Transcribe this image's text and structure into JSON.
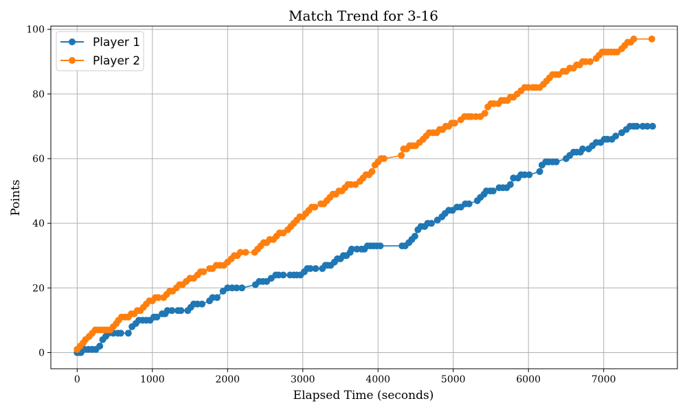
{
  "chart_data": {
    "type": "line",
    "title": "Match Trend for 3-16",
    "xlabel": "Elapsed Time (seconds)",
    "ylabel": "Points",
    "xlim": [
      -350,
      7980
    ],
    "ylim": [
      -5,
      101
    ],
    "x_ticks": [
      0,
      1000,
      2000,
      3000,
      4000,
      5000,
      6000,
      7000
    ],
    "y_ticks": [
      0,
      20,
      40,
      60,
      80,
      100
    ],
    "grid": true,
    "legend_position": "top-left",
    "series": [
      {
        "name": "Player 1",
        "color": "#1f77b4",
        "points": [
          [
            0,
            0
          ],
          [
            25,
            0
          ],
          [
            50,
            0
          ],
          [
            100,
            1
          ],
          [
            150,
            1
          ],
          [
            200,
            1
          ],
          [
            250,
            1
          ],
          [
            300,
            2
          ],
          [
            340,
            4
          ],
          [
            380,
            5
          ],
          [
            420,
            6
          ],
          [
            480,
            6
          ],
          [
            540,
            6
          ],
          [
            580,
            6
          ],
          [
            680,
            6
          ],
          [
            730,
            8
          ],
          [
            780,
            9
          ],
          [
            820,
            10
          ],
          [
            870,
            10
          ],
          [
            920,
            10
          ],
          [
            970,
            10
          ],
          [
            1020,
            11
          ],
          [
            1060,
            11
          ],
          [
            1130,
            12
          ],
          [
            1170,
            12
          ],
          [
            1200,
            13
          ],
          [
            1260,
            13
          ],
          [
            1340,
            13
          ],
          [
            1380,
            13
          ],
          [
            1470,
            13
          ],
          [
            1510,
            14
          ],
          [
            1550,
            15
          ],
          [
            1600,
            15
          ],
          [
            1660,
            15
          ],
          [
            1760,
            16
          ],
          [
            1800,
            17
          ],
          [
            1860,
            17
          ],
          [
            1940,
            19
          ],
          [
            2000,
            20
          ],
          [
            2060,
            20
          ],
          [
            2120,
            20
          ],
          [
            2190,
            20
          ],
          [
            2370,
            21
          ],
          [
            2420,
            22
          ],
          [
            2470,
            22
          ],
          [
            2520,
            22
          ],
          [
            2580,
            23
          ],
          [
            2640,
            24
          ],
          [
            2680,
            24
          ],
          [
            2740,
            24
          ],
          [
            2830,
            24
          ],
          [
            2880,
            24
          ],
          [
            2920,
            24
          ],
          [
            2970,
            24
          ],
          [
            3020,
            25
          ],
          [
            3060,
            26
          ],
          [
            3100,
            26
          ],
          [
            3170,
            26
          ],
          [
            3260,
            26
          ],
          [
            3300,
            27
          ],
          [
            3330,
            27
          ],
          [
            3370,
            27
          ],
          [
            3420,
            28
          ],
          [
            3460,
            29
          ],
          [
            3500,
            29
          ],
          [
            3540,
            30
          ],
          [
            3580,
            30
          ],
          [
            3630,
            31
          ],
          [
            3650,
            32
          ],
          [
            3720,
            32
          ],
          [
            3780,
            32
          ],
          [
            3820,
            32
          ],
          [
            3860,
            33
          ],
          [
            3900,
            33
          ],
          [
            3940,
            33
          ],
          [
            3980,
            33
          ],
          [
            4030,
            33
          ],
          [
            4320,
            33
          ],
          [
            4360,
            33
          ],
          [
            4410,
            34
          ],
          [
            4450,
            35
          ],
          [
            4490,
            36
          ],
          [
            4530,
            38
          ],
          [
            4570,
            39
          ],
          [
            4620,
            39
          ],
          [
            4660,
            40
          ],
          [
            4710,
            40
          ],
          [
            4790,
            41
          ],
          [
            4850,
            42
          ],
          [
            4890,
            43
          ],
          [
            4940,
            44
          ],
          [
            4990,
            44
          ],
          [
            5050,
            45
          ],
          [
            5100,
            45
          ],
          [
            5160,
            46
          ],
          [
            5210,
            46
          ],
          [
            5320,
            47
          ],
          [
            5360,
            48
          ],
          [
            5410,
            49
          ],
          [
            5440,
            50
          ],
          [
            5490,
            50
          ],
          [
            5530,
            50
          ],
          [
            5610,
            51
          ],
          [
            5660,
            51
          ],
          [
            5710,
            51
          ],
          [
            5760,
            52
          ],
          [
            5800,
            54
          ],
          [
            5860,
            54
          ],
          [
            5900,
            55
          ],
          [
            5950,
            55
          ],
          [
            6010,
            55
          ],
          [
            6150,
            56
          ],
          [
            6180,
            58
          ],
          [
            6230,
            59
          ],
          [
            6270,
            59
          ],
          [
            6320,
            59
          ],
          [
            6370,
            59
          ],
          [
            6500,
            60
          ],
          [
            6550,
            61
          ],
          [
            6600,
            62
          ],
          [
            6640,
            62
          ],
          [
            6690,
            62
          ],
          [
            6720,
            63
          ],
          [
            6800,
            63
          ],
          [
            6850,
            64
          ],
          [
            6900,
            65
          ],
          [
            6960,
            65
          ],
          [
            7010,
            66
          ],
          [
            7050,
            66
          ],
          [
            7110,
            66
          ],
          [
            7160,
            67
          ],
          [
            7240,
            68
          ],
          [
            7300,
            69
          ],
          [
            7350,
            70
          ],
          [
            7400,
            70
          ],
          [
            7440,
            70
          ],
          [
            7520,
            70
          ],
          [
            7580,
            70
          ],
          [
            7650,
            70
          ]
        ]
      },
      {
        "name": "Player 2",
        "color": "#ff7f0e",
        "points": [
          [
            0,
            1
          ],
          [
            40,
            2
          ],
          [
            80,
            3
          ],
          [
            110,
            4
          ],
          [
            160,
            5
          ],
          [
            200,
            6
          ],
          [
            240,
            7
          ],
          [
            280,
            7
          ],
          [
            320,
            7
          ],
          [
            360,
            7
          ],
          [
            400,
            7
          ],
          [
            440,
            7
          ],
          [
            480,
            8
          ],
          [
            520,
            9
          ],
          [
            550,
            10
          ],
          [
            590,
            11
          ],
          [
            640,
            11
          ],
          [
            680,
            11
          ],
          [
            720,
            12
          ],
          [
            760,
            12
          ],
          [
            800,
            13
          ],
          [
            840,
            13
          ],
          [
            880,
            14
          ],
          [
            920,
            15
          ],
          [
            960,
            16
          ],
          [
            1000,
            16
          ],
          [
            1040,
            17
          ],
          [
            1080,
            17
          ],
          [
            1150,
            17
          ],
          [
            1190,
            18
          ],
          [
            1230,
            19
          ],
          [
            1270,
            19
          ],
          [
            1320,
            20
          ],
          [
            1360,
            21
          ],
          [
            1400,
            21
          ],
          [
            1450,
            22
          ],
          [
            1500,
            23
          ],
          [
            1550,
            23
          ],
          [
            1600,
            24
          ],
          [
            1640,
            25
          ],
          [
            1680,
            25
          ],
          [
            1760,
            26
          ],
          [
            1800,
            26
          ],
          [
            1850,
            27
          ],
          [
            1900,
            27
          ],
          [
            1950,
            27
          ],
          [
            2000,
            28
          ],
          [
            2050,
            29
          ],
          [
            2090,
            30
          ],
          [
            2130,
            30
          ],
          [
            2170,
            31
          ],
          [
            2240,
            31
          ],
          [
            2360,
            31
          ],
          [
            2400,
            32
          ],
          [
            2440,
            33
          ],
          [
            2480,
            34
          ],
          [
            2520,
            34
          ],
          [
            2560,
            35
          ],
          [
            2610,
            35
          ],
          [
            2650,
            36
          ],
          [
            2690,
            37
          ],
          [
            2740,
            37
          ],
          [
            2800,
            38
          ],
          [
            2840,
            39
          ],
          [
            2880,
            40
          ],
          [
            2920,
            41
          ],
          [
            2960,
            42
          ],
          [
            3000,
            42
          ],
          [
            3040,
            43
          ],
          [
            3080,
            44
          ],
          [
            3120,
            45
          ],
          [
            3160,
            45
          ],
          [
            3240,
            46
          ],
          [
            3280,
            46
          ],
          [
            3320,
            47
          ],
          [
            3360,
            48
          ],
          [
            3400,
            49
          ],
          [
            3440,
            49
          ],
          [
            3480,
            50
          ],
          [
            3520,
            50
          ],
          [
            3560,
            51
          ],
          [
            3600,
            52
          ],
          [
            3640,
            52
          ],
          [
            3700,
            52
          ],
          [
            3760,
            53
          ],
          [
            3800,
            54
          ],
          [
            3840,
            55
          ],
          [
            3880,
            55
          ],
          [
            3920,
            56
          ],
          [
            3960,
            58
          ],
          [
            4000,
            59
          ],
          [
            4040,
            60
          ],
          [
            4080,
            60
          ],
          [
            4310,
            61
          ],
          [
            4340,
            63
          ],
          [
            4380,
            63
          ],
          [
            4420,
            64
          ],
          [
            4460,
            64
          ],
          [
            4500,
            64
          ],
          [
            4550,
            65
          ],
          [
            4600,
            66
          ],
          [
            4640,
            67
          ],
          [
            4680,
            68
          ],
          [
            4730,
            68
          ],
          [
            4780,
            68
          ],
          [
            4820,
            69
          ],
          [
            4860,
            69
          ],
          [
            4900,
            70
          ],
          [
            4940,
            70
          ],
          [
            4980,
            71
          ],
          [
            5020,
            71
          ],
          [
            5100,
            72
          ],
          [
            5150,
            73
          ],
          [
            5200,
            73
          ],
          [
            5240,
            73
          ],
          [
            5300,
            73
          ],
          [
            5360,
            73
          ],
          [
            5420,
            74
          ],
          [
            5460,
            76
          ],
          [
            5500,
            77
          ],
          [
            5540,
            77
          ],
          [
            5600,
            77
          ],
          [
            5640,
            78
          ],
          [
            5680,
            78
          ],
          [
            5720,
            78
          ],
          [
            5760,
            79
          ],
          [
            5800,
            79
          ],
          [
            5850,
            80
          ],
          [
            5900,
            81
          ],
          [
            5950,
            82
          ],
          [
            6000,
            82
          ],
          [
            6060,
            82
          ],
          [
            6100,
            82
          ],
          [
            6150,
            82
          ],
          [
            6200,
            83
          ],
          [
            6240,
            84
          ],
          [
            6280,
            85
          ],
          [
            6320,
            86
          ],
          [
            6360,
            86
          ],
          [
            6400,
            86
          ],
          [
            6460,
            87
          ],
          [
            6500,
            87
          ],
          [
            6550,
            88
          ],
          [
            6600,
            88
          ],
          [
            6640,
            89
          ],
          [
            6680,
            89
          ],
          [
            6720,
            90
          ],
          [
            6760,
            90
          ],
          [
            6820,
            90
          ],
          [
            6900,
            91
          ],
          [
            6940,
            92
          ],
          [
            6980,
            93
          ],
          [
            7020,
            93
          ],
          [
            7060,
            93
          ],
          [
            7100,
            93
          ],
          [
            7140,
            93
          ],
          [
            7180,
            93
          ],
          [
            7240,
            94
          ],
          [
            7280,
            95
          ],
          [
            7320,
            96
          ],
          [
            7360,
            96
          ],
          [
            7400,
            97
          ],
          [
            7640,
            97
          ]
        ]
      }
    ]
  }
}
